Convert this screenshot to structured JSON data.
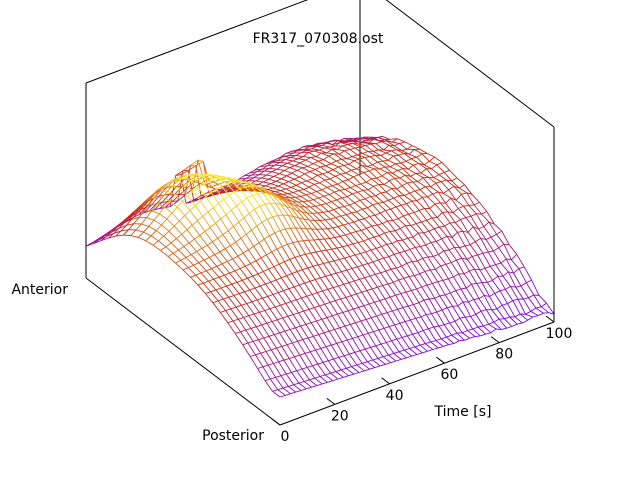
{
  "chart_data": {
    "type": "surface-3d",
    "title": "FR317_070308.ost",
    "x_axis": {
      "label": "Time [s]",
      "ticks": [
        0,
        20,
        40,
        60,
        80,
        100
      ],
      "range": [
        0,
        100
      ]
    },
    "y_axis": {
      "labels": [
        "Anterior",
        "Posterior"
      ]
    },
    "surface": {
      "style": "wireframe",
      "colormap": "purple-red-yellow",
      "low_color": "#7a00ff",
      "mid_color": "#cc2a10",
      "high_color": "#ffff30",
      "box_color": "#000000"
    },
    "grid": false,
    "legend": "none"
  }
}
